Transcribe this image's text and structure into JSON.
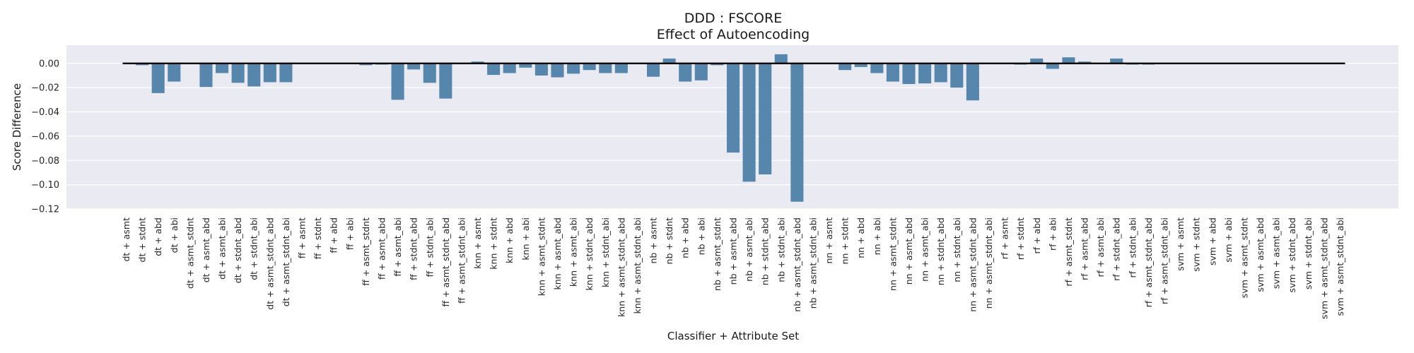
{
  "chart_data": {
    "type": "bar",
    "title": "DDD : FSCORE",
    "subtitle": "Effect of Autoencoding",
    "xlabel": "Classifier + Attribute Set",
    "ylabel": "Score Difference",
    "ylim": [
      -0.12,
      0.015
    ],
    "yticks": [
      0.0,
      -0.02,
      -0.04,
      -0.06,
      -0.08,
      -0.1,
      -0.12
    ],
    "ytick_labels": [
      "0.00",
      "−0.02",
      "−0.04",
      "−0.06",
      "−0.08",
      "−0.10",
      "−0.12"
    ],
    "grid": true,
    "zero_line": true,
    "colors": {
      "bar": "#5786ad",
      "background": "#eaeaf2",
      "grid": "#ffffff",
      "zero_line": "#000000"
    },
    "categories": [
      "dt + asmt",
      "dt + stdnt",
      "dt + abd",
      "dt + abi",
      "dt + asmt_stdnt",
      "dt + asmt_abd",
      "dt + asmt_abi",
      "dt + stdnt_abd",
      "dt + stdnt_abi",
      "dt + asmt_stdnt_abd",
      "dt + asmt_stdnt_abi",
      "ff + asmt",
      "ff + stdnt",
      "ff + abd",
      "ff + abi",
      "ff + asmt_stdnt",
      "ff + asmt_abd",
      "ff + asmt_abi",
      "ff + stdnt_abd",
      "ff + stdnt_abi",
      "ff + asmt_stdnt_abd",
      "ff + asmt_stdnt_abi",
      "knn + asmt",
      "knn + stdnt",
      "knn + abd",
      "knn + abi",
      "knn + asmt_stdnt",
      "knn + asmt_abd",
      "knn + asmt_abi",
      "knn + stdnt_abd",
      "knn + stdnt_abi",
      "knn + asmt_stdnt_abd",
      "knn + asmt_stdnt_abi",
      "nb + asmt",
      "nb + stdnt",
      "nb + abd",
      "nb + abi",
      "nb + asmt_stdnt",
      "nb + asmt_abd",
      "nb + asmt_abi",
      "nb + stdnt_abd",
      "nb + stdnt_abi",
      "nb + asmt_stdnt_abd",
      "nb + asmt_stdnt_abi",
      "nn + asmt",
      "nn + stdnt",
      "nn + abd",
      "nn + abi",
      "nn + asmt_stdnt",
      "nn + asmt_abd",
      "nn + asmt_abi",
      "nn + stdnt_abd",
      "nn + stdnt_abi",
      "nn + asmt_stdnt_abd",
      "nn + asmt_stdnt_abi",
      "rf + asmt",
      "rf + stdnt",
      "rf + abd",
      "rf + abi",
      "rf + asmt_stdnt",
      "rf + asmt_abd",
      "rf + asmt_abi",
      "rf + stdnt_abd",
      "rf + stdnt_abi",
      "rf + asmt_stdnt_abd",
      "rf + asmt_stdnt_abi",
      "svm + asmt",
      "svm + stdnt",
      "svm + abd",
      "svm + abi",
      "svm + asmt_stdnt",
      "svm + asmt_abd",
      "svm + asmt_abi",
      "svm + stdnt_abd",
      "svm + stdnt_abi",
      "svm + asmt_stdnt_abd",
      "svm + asmt_stdnt_abi"
    ],
    "values": [
      0.0,
      -0.0015,
      -0.0245,
      -0.015,
      0.0,
      -0.0195,
      -0.008,
      -0.016,
      -0.019,
      -0.0155,
      -0.0155,
      0.0,
      0.0,
      0.0,
      0.0,
      -0.0015,
      -0.001,
      -0.03,
      -0.005,
      -0.016,
      -0.029,
      0.0,
      0.0015,
      -0.0095,
      -0.008,
      -0.0035,
      -0.01,
      -0.0115,
      -0.0085,
      -0.0055,
      -0.008,
      -0.008,
      0.0,
      -0.011,
      0.004,
      -0.015,
      -0.014,
      -0.0015,
      -0.0735,
      -0.0975,
      -0.0915,
      0.0075,
      -0.114,
      0.0,
      0.0,
      -0.0055,
      -0.003,
      -0.008,
      -0.015,
      -0.017,
      -0.0165,
      -0.0155,
      -0.02,
      -0.0305,
      0.0,
      0.0,
      -0.001,
      0.004,
      -0.0045,
      0.005,
      0.0015,
      0.0,
      0.004,
      -0.001,
      -0.001,
      0.0,
      0.0,
      0.0,
      0.0,
      0.0,
      0.0,
      0.0,
      0.0,
      0.0,
      0.0,
      0.0,
      0.0
    ]
  }
}
